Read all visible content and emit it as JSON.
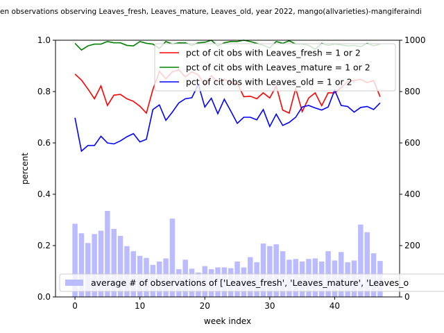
{
  "chart_data": {
    "type": "bar+line",
    "title": "en observations observing Leaves_fresh, Leaves_mature, Leaves_old, year 2022, mango(allvarieties)-mangiferaindi",
    "xlabel": "week index",
    "ylabel": "percent",
    "xlim": [
      -3,
      50
    ],
    "ylim": [
      0,
      1.0
    ],
    "y2lim": [
      0,
      1000
    ],
    "x_ticks": [
      0,
      10,
      20,
      30,
      40
    ],
    "y_ticks": [
      0.0,
      0.2,
      0.4,
      0.6,
      0.8,
      1.0
    ],
    "y2_ticks": [
      0,
      200,
      400,
      600,
      800,
      1000
    ],
    "legend_lines_placement": "upper-right",
    "legend_bars_placement": "lower-right",
    "grid": false,
    "weeks": [
      0,
      1,
      2,
      3,
      4,
      5,
      6,
      7,
      8,
      9,
      10,
      11,
      12,
      13,
      14,
      15,
      16,
      17,
      18,
      19,
      20,
      21,
      22,
      23,
      24,
      25,
      26,
      27,
      28,
      29,
      30,
      31,
      32,
      33,
      34,
      35,
      36,
      37,
      38,
      39,
      40,
      41,
      42,
      43,
      44,
      45,
      46,
      47
    ],
    "series": [
      {
        "name": "pct of cit obs with Leaves_fresh = 1 or 2",
        "color": "#ff0000",
        "axis": "left",
        "values": [
          0.868,
          0.845,
          0.81,
          0.772,
          0.822,
          0.746,
          0.786,
          0.789,
          0.772,
          0.762,
          0.743,
          0.716,
          0.808,
          0.878,
          0.85,
          0.877,
          0.885,
          0.857,
          0.877,
          0.865,
          0.825,
          0.862,
          0.838,
          0.848,
          0.835,
          0.832,
          0.78,
          0.782,
          0.772,
          0.795,
          0.775,
          0.822,
          0.728,
          0.716,
          0.812,
          0.722,
          0.775,
          0.795,
          0.745,
          0.795,
          0.795,
          0.815,
          0.84,
          0.843,
          0.848,
          0.835,
          0.843,
          0.78
        ]
      },
      {
        "name": "pct of cit obs with Leaves_mature = 1 or 2",
        "color": "#008000",
        "axis": "left",
        "values": [
          0.988,
          0.962,
          0.978,
          0.985,
          0.985,
          0.995,
          0.99,
          0.99,
          0.98,
          0.978,
          0.995,
          0.988,
          0.985,
          0.968,
          0.995,
          0.985,
          0.99,
          0.99,
          0.98,
          0.99,
          0.992,
          1.0,
          0.978,
          0.99,
          0.995,
          0.995,
          1.0,
          0.995,
          0.988,
          0.98,
          0.97,
          0.995,
          0.988,
          0.998,
          0.985,
          0.985,
          0.98,
          0.965,
          0.988,
          0.98,
          0.985,
          0.982,
          0.978,
          0.98,
          0.975,
          0.988,
          0.978,
          0.985
        ]
      },
      {
        "name": "pct of cit obs with Leaves_old = 1 or 2",
        "color": "#0000ff",
        "axis": "left",
        "values": [
          0.698,
          0.568,
          0.59,
          0.59,
          0.626,
          0.6,
          0.596,
          0.608,
          0.624,
          0.636,
          0.604,
          0.614,
          0.73,
          0.748,
          0.688,
          0.72,
          0.756,
          0.772,
          0.776,
          0.828,
          0.74,
          0.774,
          0.714,
          0.77,
          0.724,
          0.676,
          0.7,
          0.7,
          0.69,
          0.73,
          0.664,
          0.712,
          0.668,
          0.68,
          0.7,
          0.74,
          0.746,
          0.736,
          0.728,
          0.74,
          0.806,
          0.746,
          0.742,
          0.72,
          0.738,
          0.742,
          0.73,
          0.756
        ]
      }
    ],
    "bars": {
      "name": "average # of observations of ['Leaves_fresh', 'Leaves_mature', 'Leaves_o",
      "color": "#bbbbff",
      "axis": "right",
      "values": [
        285,
        248,
        210,
        245,
        258,
        335,
        265,
        238,
        198,
        178,
        160,
        152,
        125,
        138,
        150,
        305,
        108,
        145,
        110,
        95,
        120,
        108,
        115,
        115,
        112,
        138,
        115,
        155,
        135,
        208,
        198,
        205,
        178,
        145,
        148,
        138,
        148,
        150,
        138,
        178,
        142,
        175,
        135,
        142,
        282,
        252,
        170,
        140
      ]
    }
  }
}
